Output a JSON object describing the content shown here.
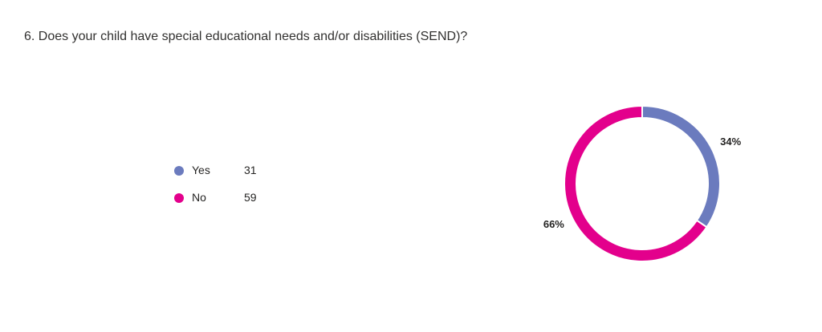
{
  "question": {
    "title": "6. Does your child have special educational needs and/or disabilities (SEND)?"
  },
  "chart_data": {
    "type": "pie",
    "style": "donut",
    "categories": [
      "Yes",
      "No"
    ],
    "values": [
      31,
      59
    ],
    "percent_labels": [
      "34%",
      "66%"
    ],
    "colors": [
      "#6B7BBE",
      "#E3008C"
    ],
    "legend_position": "left"
  }
}
